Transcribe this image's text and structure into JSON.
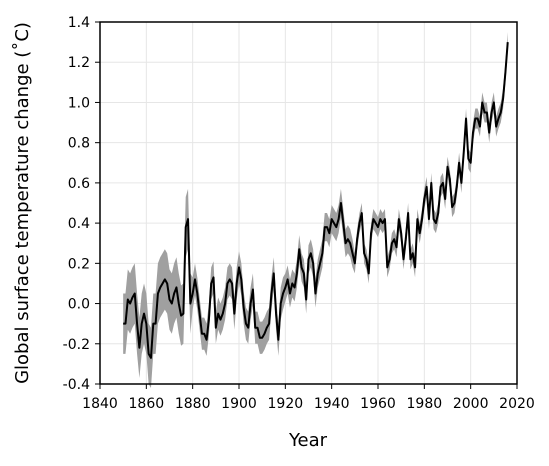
{
  "chart_data": {
    "type": "line",
    "xlabel": "Year",
    "ylabel": "Global surface temperature change (˚C)",
    "xlim": [
      1840,
      2020
    ],
    "xticks": [
      1840,
      1860,
      1880,
      1900,
      1920,
      1940,
      1960,
      1980,
      2000,
      2020
    ],
    "ylim": [
      -0.4,
      1.4
    ],
    "yticks": [
      1.4,
      1.2,
      {
        "value": 1.0,
        "label": "1.0"
      },
      0.8,
      0.6,
      0.4,
      0.2,
      {
        "value": 0.0,
        "label": "0.0"
      },
      -0.2,
      -0.4
    ],
    "grid": true,
    "color": "#000000",
    "band_color": "#a0a0a0",
    "x": [
      1850,
      1851,
      1852,
      1853,
      1854,
      1855,
      1856,
      1857,
      1858,
      1859,
      1860,
      1861,
      1862,
      1863,
      1864,
      1865,
      1866,
      1867,
      1868,
      1869,
      1870,
      1871,
      1872,
      1873,
      1874,
      1875,
      1876,
      1877,
      1878,
      1879,
      1880,
      1881,
      1882,
      1883,
      1884,
      1885,
      1886,
      1887,
      1888,
      1889,
      1890,
      1891,
      1892,
      1893,
      1894,
      1895,
      1896,
      1897,
      1898,
      1899,
      1900,
      1901,
      1902,
      1903,
      1904,
      1905,
      1906,
      1907,
      1908,
      1909,
      1910,
      1911,
      1912,
      1913,
      1914,
      1915,
      1916,
      1917,
      1918,
      1919,
      1920,
      1921,
      1922,
      1923,
      1924,
      1925,
      1926,
      1927,
      1928,
      1929,
      1930,
      1931,
      1932,
      1933,
      1934,
      1935,
      1936,
      1937,
      1938,
      1939,
      1940,
      1941,
      1942,
      1943,
      1944,
      1945,
      1946,
      1947,
      1948,
      1949,
      1950,
      1951,
      1952,
      1953,
      1954,
      1955,
      1956,
      1957,
      1958,
      1959,
      1960,
      1961,
      1962,
      1963,
      1964,
      1965,
      1966,
      1967,
      1968,
      1969,
      1970,
      1971,
      1972,
      1973,
      1974,
      1975,
      1976,
      1977,
      1978,
      1979,
      1980,
      1981,
      1982,
      1983,
      1984,
      1985,
      1986,
      1987,
      1988,
      1989,
      1990,
      1991,
      1992,
      1993,
      1994,
      1995,
      1996,
      1997,
      1998,
      1999,
      2000,
      2001,
      2002,
      2003,
      2004,
      2005,
      2006,
      2007,
      2008,
      2009,
      2010,
      2011,
      2012,
      2013,
      2014,
      2015,
      2016
    ],
    "values": [
      -0.1,
      -0.1,
      0.02,
      0.0,
      0.03,
      0.05,
      -0.1,
      -0.22,
      -0.1,
      -0.05,
      -0.1,
      -0.25,
      -0.27,
      -0.1,
      -0.1,
      0.05,
      0.08,
      0.1,
      0.12,
      0.1,
      0.02,
      0.0,
      0.05,
      0.08,
      0.0,
      -0.06,
      -0.05,
      0.38,
      0.42,
      0.0,
      0.05,
      0.12,
      0.05,
      -0.05,
      -0.15,
      -0.15,
      -0.18,
      -0.08,
      0.1,
      0.13,
      -0.12,
      -0.05,
      -0.08,
      -0.05,
      0.0,
      0.1,
      0.12,
      0.1,
      -0.05,
      0.1,
      0.18,
      0.12,
      -0.02,
      -0.1,
      -0.12,
      0.0,
      0.07,
      -0.12,
      -0.12,
      -0.17,
      -0.17,
      -0.15,
      -0.12,
      -0.1,
      0.05,
      0.15,
      -0.05,
      -0.18,
      0.0,
      0.05,
      0.08,
      0.12,
      0.05,
      0.1,
      0.08,
      0.15,
      0.27,
      0.18,
      0.15,
      0.02,
      0.22,
      0.25,
      0.2,
      0.05,
      0.15,
      0.2,
      0.25,
      0.38,
      0.38,
      0.35,
      0.42,
      0.4,
      0.38,
      0.42,
      0.5,
      0.4,
      0.3,
      0.32,
      0.3,
      0.25,
      0.2,
      0.32,
      0.4,
      0.45,
      0.25,
      0.22,
      0.15,
      0.35,
      0.42,
      0.4,
      0.38,
      0.42,
      0.4,
      0.42,
      0.18,
      0.22,
      0.3,
      0.32,
      0.28,
      0.42,
      0.35,
      0.22,
      0.32,
      0.45,
      0.22,
      0.25,
      0.18,
      0.42,
      0.35,
      0.42,
      0.52,
      0.58,
      0.42,
      0.6,
      0.42,
      0.4,
      0.45,
      0.58,
      0.6,
      0.52,
      0.68,
      0.62,
      0.48,
      0.5,
      0.58,
      0.7,
      0.6,
      0.75,
      0.92,
      0.72,
      0.7,
      0.85,
      0.92,
      0.92,
      0.88,
      1.0,
      0.95,
      0.95,
      0.85,
      0.95,
      1.0,
      0.88,
      0.92,
      0.95,
      1.02,
      1.15,
      1.3
    ],
    "error": [
      0.15,
      0.15,
      0.15,
      0.15,
      0.15,
      0.15,
      0.15,
      0.15,
      0.15,
      0.15,
      0.15,
      0.15,
      0.15,
      0.15,
      0.15,
      0.15,
      0.15,
      0.15,
      0.15,
      0.15,
      0.15,
      0.15,
      0.15,
      0.15,
      0.15,
      0.15,
      0.15,
      0.15,
      0.15,
      0.15,
      0.08,
      0.08,
      0.08,
      0.08,
      0.08,
      0.08,
      0.08,
      0.08,
      0.08,
      0.08,
      0.08,
      0.08,
      0.08,
      0.08,
      0.08,
      0.08,
      0.08,
      0.08,
      0.08,
      0.08,
      0.08,
      0.08,
      0.08,
      0.08,
      0.08,
      0.08,
      0.08,
      0.08,
      0.08,
      0.08,
      0.08,
      0.08,
      0.08,
      0.08,
      0.08,
      0.08,
      0.08,
      0.08,
      0.08,
      0.08,
      0.07,
      0.07,
      0.07,
      0.07,
      0.07,
      0.07,
      0.07,
      0.07,
      0.07,
      0.07,
      0.07,
      0.07,
      0.07,
      0.07,
      0.07,
      0.07,
      0.07,
      0.07,
      0.07,
      0.07,
      0.07,
      0.07,
      0.07,
      0.07,
      0.07,
      0.07,
      0.07,
      0.07,
      0.07,
      0.07,
      0.05,
      0.05,
      0.05,
      0.05,
      0.05,
      0.05,
      0.05,
      0.05,
      0.05,
      0.05,
      0.05,
      0.05,
      0.05,
      0.05,
      0.05,
      0.05,
      0.05,
      0.05,
      0.05,
      0.05,
      0.05,
      0.05,
      0.05,
      0.05,
      0.05,
      0.05,
      0.05,
      0.05,
      0.05,
      0.05,
      0.05,
      0.05,
      0.05,
      0.05,
      0.05,
      0.05,
      0.05,
      0.05,
      0.05,
      0.05,
      0.05,
      0.05,
      0.05,
      0.05,
      0.05,
      0.05,
      0.05,
      0.05,
      0.05,
      0.05,
      0.05,
      0.05,
      0.05,
      0.05,
      0.05,
      0.05,
      0.05,
      0.05,
      0.05,
      0.05,
      0.05,
      0.05,
      0.05,
      0.05,
      0.05,
      0.05,
      0.05
    ]
  }
}
